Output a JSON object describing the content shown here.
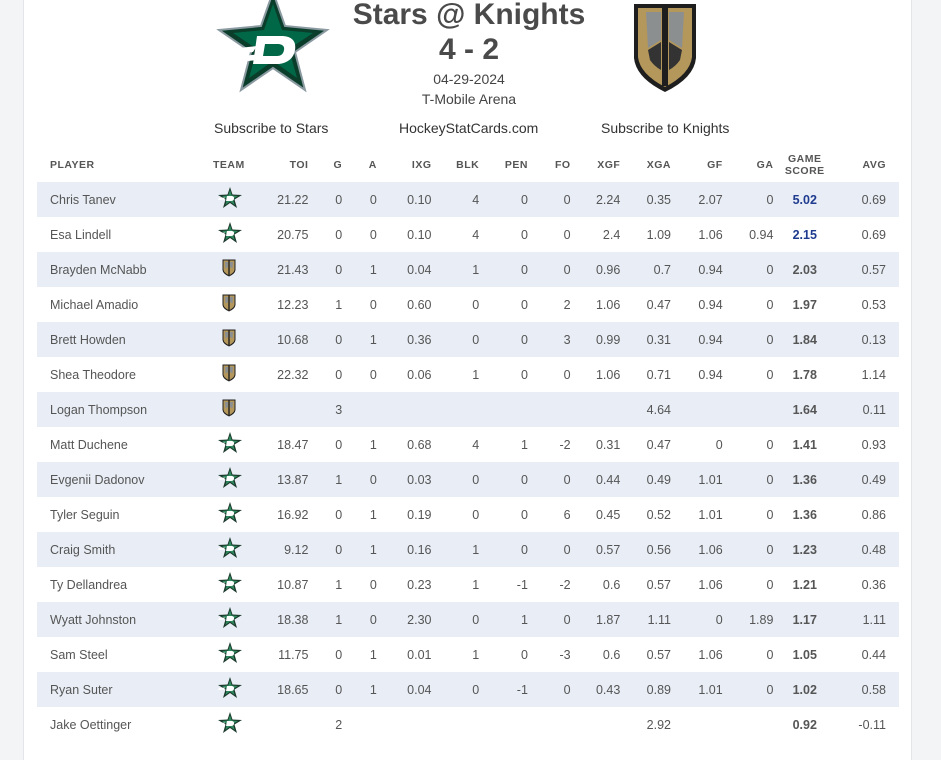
{
  "header": {
    "title": "Stars @ Knights",
    "score": "4 - 2",
    "date": "04-29-2024",
    "venue": "T-Mobile Arena",
    "away_logo": "dallas-stars-logo",
    "home_logo": "vegas-golden-knights-logo",
    "subscribe_away": "Subscribe to Stars",
    "site": "HockeyStatCards.com",
    "subscribe_home": "Subscribe to Knights"
  },
  "colors": {
    "stars_green": "#006847",
    "knights_gold": "#b4975a",
    "game_score_blue": "#3b7dd8",
    "game_score_top": "#1f3b8f",
    "row_stripe": "#e9eef6"
  },
  "columns": {
    "player": "PLAYER",
    "team": "TEAM",
    "toi": "TOI",
    "g": "G",
    "a": "A",
    "ixg": "IXG",
    "blk": "BLK",
    "pen": "PEN",
    "fo": "FO",
    "xgf": "XGF",
    "xga": "XGA",
    "gf": "GF",
    "ga": "GA",
    "game_score_1": "GAME",
    "game_score_2": "SCORE",
    "avg": "AVG"
  },
  "rows": [
    {
      "player": "Chris Tanev",
      "team": "stars",
      "toi": "21.22",
      "g": "0",
      "a": "0",
      "ixg": "0.10",
      "blk": "4",
      "pen": "0",
      "fo": "0",
      "xgf": "2.24",
      "xga": "0.35",
      "gf": "2.07",
      "ga": "0",
      "gs": "5.02",
      "avg": "0.69"
    },
    {
      "player": "Esa Lindell",
      "team": "stars",
      "toi": "20.75",
      "g": "0",
      "a": "0",
      "ixg": "0.10",
      "blk": "4",
      "pen": "0",
      "fo": "0",
      "xgf": "2.4",
      "xga": "1.09",
      "gf": "1.06",
      "ga": "0.94",
      "gs": "2.15",
      "avg": "0.69"
    },
    {
      "player": "Brayden McNabb",
      "team": "knights",
      "toi": "21.43",
      "g": "0",
      "a": "1",
      "ixg": "0.04",
      "blk": "1",
      "pen": "0",
      "fo": "0",
      "xgf": "0.96",
      "xga": "0.7",
      "gf": "0.94",
      "ga": "0",
      "gs": "2.03",
      "avg": "0.57"
    },
    {
      "player": "Michael Amadio",
      "team": "knights",
      "toi": "12.23",
      "g": "1",
      "a": "0",
      "ixg": "0.60",
      "blk": "0",
      "pen": "0",
      "fo": "2",
      "xgf": "1.06",
      "xga": "0.47",
      "gf": "0.94",
      "ga": "0",
      "gs": "1.97",
      "avg": "0.53"
    },
    {
      "player": "Brett Howden",
      "team": "knights",
      "toi": "10.68",
      "g": "0",
      "a": "1",
      "ixg": "0.36",
      "blk": "0",
      "pen": "0",
      "fo": "3",
      "xgf": "0.99",
      "xga": "0.31",
      "gf": "0.94",
      "ga": "0",
      "gs": "1.84",
      "avg": "0.13"
    },
    {
      "player": "Shea Theodore",
      "team": "knights",
      "toi": "22.32",
      "g": "0",
      "a": "0",
      "ixg": "0.06",
      "blk": "1",
      "pen": "0",
      "fo": "0",
      "xgf": "1.06",
      "xga": "0.71",
      "gf": "0.94",
      "ga": "0",
      "gs": "1.78",
      "avg": "1.14"
    },
    {
      "player": "Logan Thompson",
      "team": "knights",
      "toi": "",
      "g": "3",
      "a": "",
      "ixg": "",
      "blk": "",
      "pen": "",
      "fo": "",
      "xgf": "",
      "xga": "4.64",
      "gf": "",
      "ga": "",
      "gs": "1.64",
      "avg": "0.11"
    },
    {
      "player": "Matt Duchene",
      "team": "stars",
      "toi": "18.47",
      "g": "0",
      "a": "1",
      "ixg": "0.68",
      "blk": "4",
      "pen": "1",
      "fo": "-2",
      "xgf": "0.31",
      "xga": "0.47",
      "gf": "0",
      "ga": "0",
      "gs": "1.41",
      "avg": "0.93"
    },
    {
      "player": "Evgenii Dadonov",
      "team": "stars",
      "toi": "13.87",
      "g": "1",
      "a": "0",
      "ixg": "0.03",
      "blk": "0",
      "pen": "0",
      "fo": "0",
      "xgf": "0.44",
      "xga": "0.49",
      "gf": "1.01",
      "ga": "0",
      "gs": "1.36",
      "avg": "0.49"
    },
    {
      "player": "Tyler Seguin",
      "team": "stars",
      "toi": "16.92",
      "g": "0",
      "a": "1",
      "ixg": "0.19",
      "blk": "0",
      "pen": "0",
      "fo": "6",
      "xgf": "0.45",
      "xga": "0.52",
      "gf": "1.01",
      "ga": "0",
      "gs": "1.36",
      "avg": "0.86"
    },
    {
      "player": "Craig Smith",
      "team": "stars",
      "toi": "9.12",
      "g": "0",
      "a": "1",
      "ixg": "0.16",
      "blk": "1",
      "pen": "0",
      "fo": "0",
      "xgf": "0.57",
      "xga": "0.56",
      "gf": "1.06",
      "ga": "0",
      "gs": "1.23",
      "avg": "0.48"
    },
    {
      "player": "Ty Dellandrea",
      "team": "stars",
      "toi": "10.87",
      "g": "1",
      "a": "0",
      "ixg": "0.23",
      "blk": "1",
      "pen": "-1",
      "fo": "-2",
      "xgf": "0.6",
      "xga": "0.57",
      "gf": "1.06",
      "ga": "0",
      "gs": "1.21",
      "avg": "0.36"
    },
    {
      "player": "Wyatt Johnston",
      "team": "stars",
      "toi": "18.38",
      "g": "1",
      "a": "0",
      "ixg": "2.30",
      "blk": "0",
      "pen": "1",
      "fo": "0",
      "xgf": "1.87",
      "xga": "1.11",
      "gf": "0",
      "ga": "1.89",
      "gs": "1.17",
      "avg": "1.11"
    },
    {
      "player": "Sam Steel",
      "team": "stars",
      "toi": "11.75",
      "g": "0",
      "a": "1",
      "ixg": "0.01",
      "blk": "1",
      "pen": "0",
      "fo": "-3",
      "xgf": "0.6",
      "xga": "0.57",
      "gf": "1.06",
      "ga": "0",
      "gs": "1.05",
      "avg": "0.44"
    },
    {
      "player": "Ryan Suter",
      "team": "stars",
      "toi": "18.65",
      "g": "0",
      "a": "1",
      "ixg": "0.04",
      "blk": "0",
      "pen": "-1",
      "fo": "0",
      "xgf": "0.43",
      "xga": "0.89",
      "gf": "1.01",
      "ga": "0",
      "gs": "1.02",
      "avg": "0.58"
    },
    {
      "player": "Jake Oettinger",
      "team": "stars",
      "toi": "",
      "g": "2",
      "a": "",
      "ixg": "",
      "blk": "",
      "pen": "",
      "fo": "",
      "xgf": "",
      "xga": "2.92",
      "gf": "",
      "ga": "",
      "gs": "0.92",
      "avg": "-0.11"
    }
  ]
}
